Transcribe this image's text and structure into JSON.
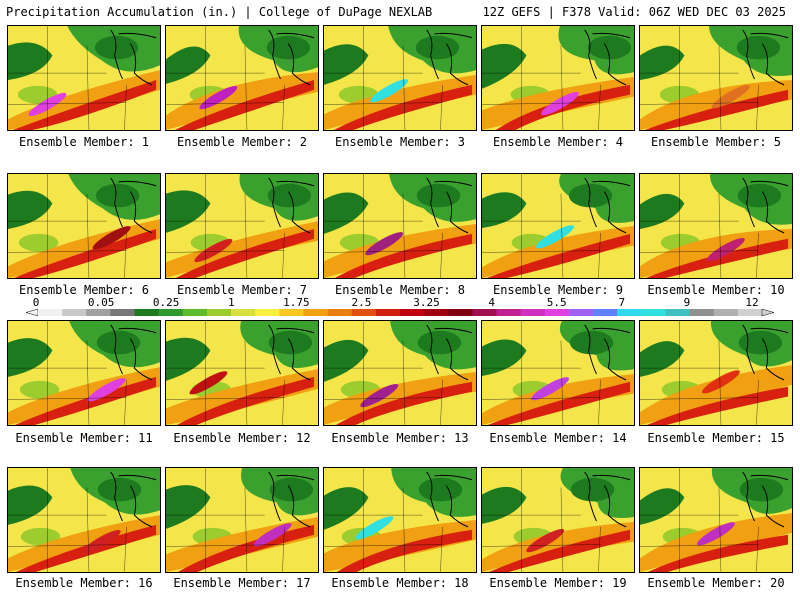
{
  "header": {
    "left": "Precipitation Accumulation (in.) | College of DuPage NEXLAB",
    "right": "12Z GEFS | F378 Valid: 06Z WED DEC 03 2025"
  },
  "members": [
    {
      "label": "Ensemble Member: 1",
      "peak_color": "#e040e0"
    },
    {
      "label": "Ensemble Member: 2",
      "peak_color": "#c020c0"
    },
    {
      "label": "Ensemble Member: 3",
      "peak_color": "#30e0e0"
    },
    {
      "label": "Ensemble Member: 4",
      "peak_color": "#e040e0"
    },
    {
      "label": "Ensemble Member: 5",
      "peak_color": "#e07020"
    },
    {
      "label": "Ensemble Member: 6",
      "peak_color": "#a01010"
    },
    {
      "label": "Ensemble Member: 7",
      "peak_color": "#d02020"
    },
    {
      "label": "Ensemble Member: 8",
      "peak_color": "#a02080"
    },
    {
      "label": "Ensemble Member: 9",
      "peak_color": "#30e0e0"
    },
    {
      "label": "Ensemble Member: 10",
      "peak_color": "#c02070"
    },
    {
      "label": "Ensemble Member: 11",
      "peak_color": "#e040e0"
    },
    {
      "label": "Ensemble Member: 12",
      "peak_color": "#c01010"
    },
    {
      "label": "Ensemble Member: 13",
      "peak_color": "#a02090"
    },
    {
      "label": "Ensemble Member: 14",
      "peak_color": "#c040e0"
    },
    {
      "label": "Ensemble Member: 15",
      "peak_color": "#e03010"
    },
    {
      "label": "Ensemble Member: 16",
      "peak_color": "#d02020"
    },
    {
      "label": "Ensemble Member: 17",
      "peak_color": "#c030c0"
    },
    {
      "label": "Ensemble Member: 18",
      "peak_color": "#30e0e0"
    },
    {
      "label": "Ensemble Member: 19",
      "peak_color": "#d02020"
    },
    {
      "label": "Ensemble Member: 20",
      "peak_color": "#c030c0"
    }
  ],
  "colorbar": {
    "labels": [
      "0",
      "0.05",
      "0.25",
      "1",
      "1.75",
      "2.5",
      "3.25",
      "4",
      "5.5",
      "7",
      "9",
      "12"
    ],
    "colors": [
      "#f0f0f0",
      "#c8c8c8",
      "#a0a0a0",
      "#787878",
      "#1e7a1e",
      "#2e9a2e",
      "#5cbc2e",
      "#9ccc2e",
      "#d8e040",
      "#f8f040",
      "#f8c820",
      "#f0a010",
      "#e88010",
      "#e05010",
      "#d02010",
      "#c00010",
      "#a00010",
      "#800010",
      "#a01050",
      "#c02090",
      "#d030c0",
      "#e040e0",
      "#a060f0",
      "#6080f8",
      "#30d8f0",
      "#30e0e0",
      "#40c0c0",
      "#909090",
      "#b0b0b0",
      "#d0d0d0"
    ],
    "label_color": "#000000"
  },
  "palette": {
    "base": "#f4e64a",
    "green_dark": "#1e7a1e",
    "green": "#3aa02e",
    "lime": "#9ccc2e",
    "orange": "#f0a010",
    "red": "#d82010",
    "map_lines": "#000000"
  }
}
